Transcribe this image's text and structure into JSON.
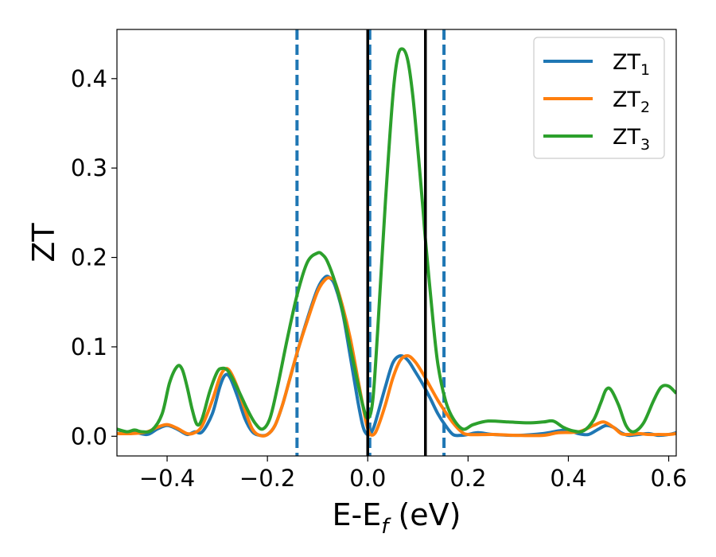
{
  "chart_data": {
    "type": "line",
    "xlabel": {
      "main": "E-E",
      "sub": "f",
      "suffix": " (eV)"
    },
    "ylabel": "ZT",
    "xlim": [
      -0.5,
      0.615
    ],
    "ylim": [
      -0.022,
      0.455
    ],
    "x_ticks": [
      -0.4,
      -0.2,
      0.0,
      0.2,
      0.4,
      0.6
    ],
    "x_tick_labels": [
      "−0.4",
      "−0.2",
      "0.0",
      "0.2",
      "0.4",
      "0.6"
    ],
    "y_ticks": [
      0.0,
      0.1,
      0.2,
      0.3,
      0.4
    ],
    "y_tick_labels": [
      "0.0",
      "0.1",
      "0.2",
      "0.3",
      "0.4"
    ],
    "grid": false,
    "legend_position": "top-right",
    "vlines_dashed": [
      -0.141,
      0.004,
      0.152
    ],
    "vlines_solid": [
      0.0,
      0.115
    ],
    "vline_dashed_color": "#1f77b4",
    "vline_solid_color": "#000000",
    "series": [
      {
        "name": "ZT",
        "sub": "1",
        "color": "#1f77b4",
        "x": [
          -0.5,
          -0.47,
          -0.44,
          -0.42,
          -0.4,
          -0.38,
          -0.36,
          -0.345,
          -0.33,
          -0.31,
          -0.295,
          -0.285,
          -0.275,
          -0.26,
          -0.245,
          -0.23,
          -0.215,
          -0.2,
          -0.185,
          -0.17,
          -0.155,
          -0.14,
          -0.12,
          -0.1,
          -0.085,
          -0.075,
          -0.065,
          -0.05,
          -0.035,
          -0.02,
          -0.01,
          -0.003,
          0.004,
          0.012,
          0.02,
          0.035,
          0.05,
          0.065,
          0.08,
          0.095,
          0.11,
          0.125,
          0.14,
          0.155,
          0.17,
          0.185,
          0.2,
          0.22,
          0.25,
          0.3,
          0.35,
          0.38,
          0.4,
          0.42,
          0.44,
          0.46,
          0.475,
          0.49,
          0.505,
          0.52,
          0.54,
          0.56,
          0.58,
          0.6,
          0.615
        ],
        "y": [
          0.003,
          0.005,
          0.002,
          0.008,
          0.012,
          0.008,
          0.002,
          0.005,
          0.005,
          0.025,
          0.055,
          0.068,
          0.066,
          0.045,
          0.02,
          0.005,
          0.001,
          0.002,
          0.012,
          0.035,
          0.065,
          0.095,
          0.132,
          0.165,
          0.178,
          0.177,
          0.168,
          0.138,
          0.09,
          0.04,
          0.012,
          0.003,
          0.002,
          0.01,
          0.025,
          0.055,
          0.082,
          0.09,
          0.085,
          0.072,
          0.058,
          0.042,
          0.025,
          0.012,
          0.002,
          0.001,
          0.002,
          0.004,
          0.002,
          0.001,
          0.003,
          0.006,
          0.007,
          0.003,
          0.002,
          0.008,
          0.012,
          0.01,
          0.004,
          0.001,
          0.002,
          0.003,
          0.001,
          0.002,
          0.004
        ]
      },
      {
        "name": "ZT",
        "sub": "2",
        "color": "#ff7f0e",
        "x": [
          -0.5,
          -0.47,
          -0.44,
          -0.42,
          -0.4,
          -0.38,
          -0.36,
          -0.345,
          -0.33,
          -0.31,
          -0.295,
          -0.285,
          -0.275,
          -0.26,
          -0.245,
          -0.23,
          -0.215,
          -0.2,
          -0.185,
          -0.17,
          -0.155,
          -0.14,
          -0.12,
          -0.1,
          -0.085,
          -0.075,
          -0.065,
          -0.05,
          -0.035,
          -0.02,
          -0.01,
          -0.003,
          0.004,
          0.012,
          0.02,
          0.035,
          0.05,
          0.065,
          0.08,
          0.095,
          0.11,
          0.125,
          0.14,
          0.155,
          0.17,
          0.185,
          0.2,
          0.25,
          0.3,
          0.35,
          0.38,
          0.42,
          0.45,
          0.47,
          0.49,
          0.505,
          0.52,
          0.54,
          0.56,
          0.58,
          0.6,
          0.615
        ],
        "y": [
          0.003,
          0.003,
          0.005,
          0.01,
          0.013,
          0.009,
          0.003,
          0.004,
          0.012,
          0.04,
          0.066,
          0.075,
          0.073,
          0.055,
          0.03,
          0.008,
          0.001,
          0.002,
          0.012,
          0.035,
          0.065,
          0.095,
          0.13,
          0.162,
          0.175,
          0.177,
          0.172,
          0.145,
          0.11,
          0.065,
          0.035,
          0.015,
          0.003,
          0.002,
          0.01,
          0.035,
          0.065,
          0.085,
          0.09,
          0.083,
          0.07,
          0.055,
          0.04,
          0.027,
          0.015,
          0.006,
          0.002,
          0.002,
          0.001,
          0.001,
          0.004,
          0.005,
          0.012,
          0.016,
          0.01,
          0.003,
          0.002,
          0.003,
          0.002,
          0.002,
          0.002,
          0.003
        ]
      },
      {
        "name": "ZT",
        "sub": "3",
        "color": "#2ca02c",
        "x": [
          -0.5,
          -0.48,
          -0.465,
          -0.45,
          -0.43,
          -0.41,
          -0.395,
          -0.38,
          -0.37,
          -0.36,
          -0.35,
          -0.34,
          -0.33,
          -0.315,
          -0.3,
          -0.29,
          -0.28,
          -0.27,
          -0.255,
          -0.24,
          -0.225,
          -0.21,
          -0.195,
          -0.18,
          -0.16,
          -0.14,
          -0.12,
          -0.1,
          -0.09,
          -0.08,
          -0.065,
          -0.05,
          -0.035,
          -0.02,
          -0.01,
          0.0,
          0.01,
          0.02,
          0.035,
          0.05,
          0.06,
          0.07,
          0.08,
          0.09,
          0.1,
          0.11,
          0.115,
          0.13,
          0.14,
          0.155,
          0.17,
          0.19,
          0.21,
          0.24,
          0.28,
          0.32,
          0.35,
          0.37,
          0.39,
          0.41,
          0.43,
          0.45,
          0.465,
          0.475,
          0.485,
          0.5,
          0.515,
          0.53,
          0.55,
          0.57,
          0.585,
          0.6,
          0.615
        ],
        "y": [
          0.008,
          0.005,
          0.007,
          0.005,
          0.007,
          0.025,
          0.06,
          0.078,
          0.075,
          0.055,
          0.03,
          0.013,
          0.02,
          0.05,
          0.072,
          0.076,
          0.074,
          0.065,
          0.048,
          0.03,
          0.015,
          0.008,
          0.02,
          0.055,
          0.11,
          0.16,
          0.195,
          0.205,
          0.203,
          0.195,
          0.172,
          0.14,
          0.1,
          0.06,
          0.035,
          0.02,
          0.04,
          0.12,
          0.26,
          0.38,
          0.425,
          0.433,
          0.42,
          0.38,
          0.32,
          0.255,
          0.22,
          0.13,
          0.08,
          0.04,
          0.02,
          0.008,
          0.013,
          0.017,
          0.016,
          0.015,
          0.016,
          0.017,
          0.01,
          0.006,
          0.006,
          0.018,
          0.038,
          0.052,
          0.052,
          0.035,
          0.012,
          0.005,
          0.015,
          0.04,
          0.055,
          0.056,
          0.048
        ]
      }
    ]
  }
}
